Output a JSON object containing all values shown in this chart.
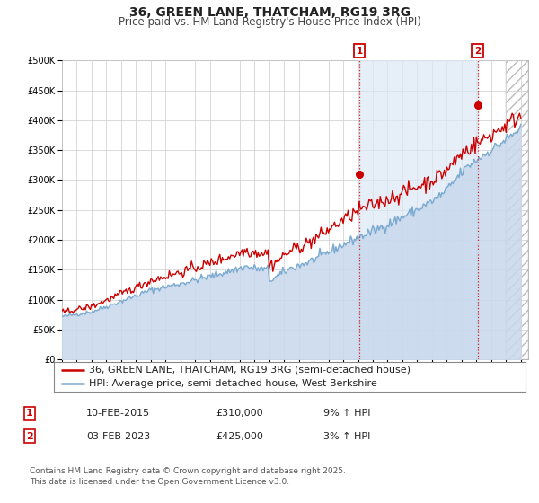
{
  "title": "36, GREEN LANE, THATCHAM, RG19 3RG",
  "subtitle": "Price paid vs. HM Land Registry's House Price Index (HPI)",
  "ylim": [
    0,
    500000
  ],
  "yticks": [
    0,
    50000,
    100000,
    150000,
    200000,
    250000,
    300000,
    350000,
    400000,
    450000,
    500000
  ],
  "xlim_start": 1995.0,
  "xlim_end": 2026.5,
  "property_color": "#cc0000",
  "hpi_color": "#7aaad0",
  "hpi_fill_color": "#c8d8ec",
  "background_color": "#ffffff",
  "grid_color": "#cccccc",
  "shaded_region_color": "#dce8f5",
  "hatch_region_start": 2025.0,
  "vline1_x": 2015.1,
  "vline2_x": 2023.08,
  "marker1_x": 2015.1,
  "marker1_y": 310000,
  "marker2_x": 2023.08,
  "marker2_y": 425000,
  "legend_label1": "36, GREEN LANE, THATCHAM, RG19 3RG (semi-detached house)",
  "legend_label2": "HPI: Average price, semi-detached house, West Berkshire",
  "table_row1": [
    "1",
    "10-FEB-2015",
    "£310,000",
    "9% ↑ HPI"
  ],
  "table_row2": [
    "2",
    "03-FEB-2023",
    "£425,000",
    "3% ↑ HPI"
  ],
  "footnote": "Contains HM Land Registry data © Crown copyright and database right 2025.\nThis data is licensed under the Open Government Licence v3.0.",
  "title_fontsize": 10,
  "subtitle_fontsize": 8.5,
  "tick_fontsize": 7,
  "legend_fontsize": 8,
  "table_fontsize": 8,
  "footnote_fontsize": 6.5
}
